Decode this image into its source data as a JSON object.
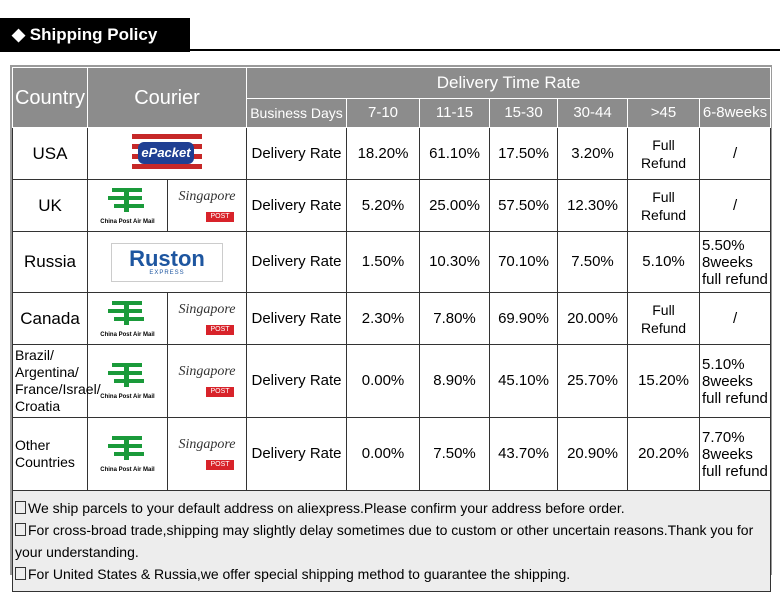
{
  "header": {
    "title": "Shipping Policy"
  },
  "table": {
    "columns": {
      "country": "Country",
      "courier": "Courier",
      "group": "Delivery Time Rate",
      "sub": [
        "Business Days",
        "7-10",
        "11-15",
        "15-30",
        "30-44",
        ">45",
        "6-8weeks"
      ]
    },
    "rows": [
      {
        "country": "USA",
        "couriers": [
          [
            "ePacket"
          ]
        ],
        "label": "Delivery Rate",
        "rates": [
          "18.20%",
          "61.10%",
          "17.50%",
          "3.20%",
          "Full Refund",
          "/"
        ]
      },
      {
        "country": "UK",
        "couriers": [
          [
            "China Post Air Mail"
          ],
          [
            "Singapore",
            "POST"
          ]
        ],
        "label": "Delivery Rate",
        "rates": [
          "5.20%",
          "25.00%",
          "57.50%",
          "12.30%",
          "Full Refund",
          "/"
        ]
      },
      {
        "country": "Russia",
        "couriers": [
          [
            "Ruston",
            "EXPRESS"
          ]
        ],
        "label": "Delivery Rate",
        "rates": [
          "1.50%",
          "10.30%",
          "70.10%",
          "7.50%",
          "5.10%",
          "5.50%\n8weeks\nfull refund"
        ]
      },
      {
        "country": "Canada",
        "couriers": [
          [
            "China Post Air Mail"
          ],
          [
            "Singapore",
            "POST"
          ]
        ],
        "label": "Delivery Rate",
        "rates": [
          "2.30%",
          "7.80%",
          "69.90%",
          "20.00%",
          "Full Refund",
          "/"
        ]
      },
      {
        "country": "Brazil/\nArgentina/\nFrance/Israel/\nCroatia",
        "couriers": [
          [
            "China Post Air Mail"
          ],
          [
            "Singapore",
            "POST"
          ]
        ],
        "label": "Delivery Rate",
        "rates": [
          "0.00%",
          "8.90%",
          "45.10%",
          "25.70%",
          "15.20%",
          "5.10%\n8weeks\nfull refund"
        ]
      },
      {
        "country": "Other\nCountries",
        "couriers": [
          [
            "China Post Air Mail"
          ],
          [
            "Singapore",
            "POST"
          ]
        ],
        "label": "Delivery Rate",
        "rates": [
          "0.00%",
          "7.50%",
          "43.70%",
          "20.90%",
          "20.20%",
          "7.70%\n8weeks\nfull refund"
        ]
      }
    ]
  },
  "notes": [
    "We ship parcels to your default address on aliexpress.Please confirm your address before order.",
    "For cross-broad trade,shipping may slightly delay sometimes due to custom or other uncertain reasons.Thank you for your understanding.",
    "For United States & Russia,we offer special shipping method to guarantee the shipping."
  ]
}
